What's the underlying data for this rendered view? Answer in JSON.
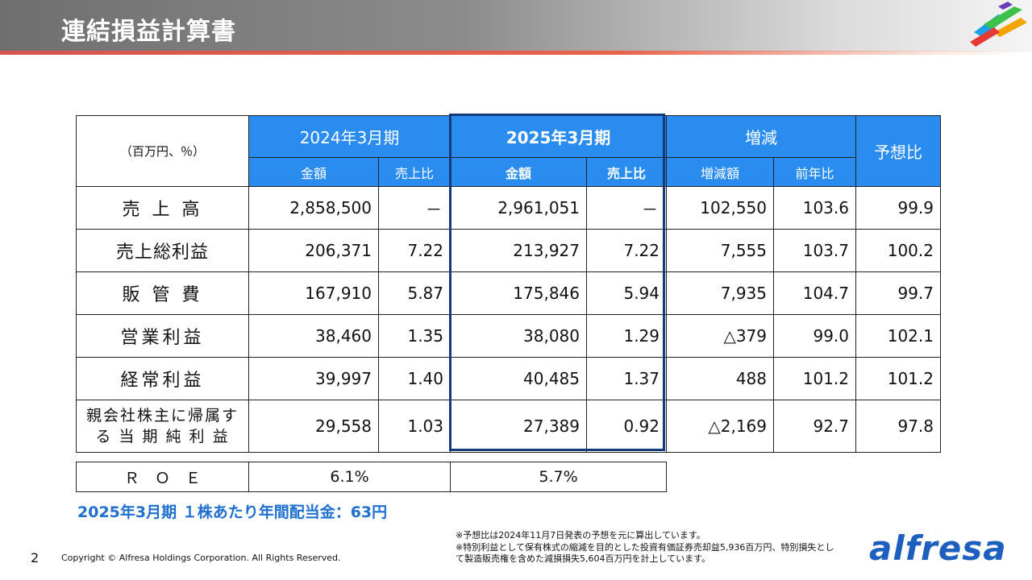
{
  "header": {
    "title": "連結損益計算書"
  },
  "colors": {
    "header_blue": "#2b8cf0",
    "highlight_border": "#143a7a",
    "dividend_text": "#1f6fd1",
    "brand": "#1c5fbf"
  },
  "table": {
    "unit_label": "（百万円、％）",
    "groups": {
      "fy2024": "2024年3月期",
      "fy2025": "2025年3月期",
      "change": "増減",
      "forecast_ratio": "予想比"
    },
    "subheaders": {
      "amount_2024": "金額",
      "ratio_2024": "売上比",
      "amount_2025": "金額",
      "ratio_2025": "売上比",
      "change_amount": "増減額",
      "yoy": "前年比"
    },
    "rows": [
      {
        "label": "売 上 高",
        "a2024": "2,858,500",
        "r2024": "－",
        "a2025": "2,961,051",
        "r2025": "－",
        "chg": "102,550",
        "yoy": "103.6",
        "fc": "99.9"
      },
      {
        "label": "売上総利益",
        "a2024": "206,371",
        "r2024": "7.22",
        "a2025": "213,927",
        "r2025": "7.22",
        "chg": "7,555",
        "yoy": "103.7",
        "fc": "100.2"
      },
      {
        "label": "販 管 費",
        "a2024": "167,910",
        "r2024": "5.87",
        "a2025": "175,846",
        "r2025": "5.94",
        "chg": "7,935",
        "yoy": "104.7",
        "fc": "99.7"
      },
      {
        "label": "営業利益",
        "a2024": "38,460",
        "r2024": "1.35",
        "a2025": "38,080",
        "r2025": "1.29",
        "chg": "△379",
        "yoy": "99.0",
        "fc": "102.1"
      },
      {
        "label": "経常利益",
        "a2024": "39,997",
        "r2024": "1.40",
        "a2025": "40,485",
        "r2025": "1.37",
        "chg": "488",
        "yoy": "101.2",
        "fc": "101.2"
      },
      {
        "label_line1": "親会社株主に帰属す",
        "label_line2": "る 当 期 純 利 益",
        "a2024": "29,558",
        "r2024": "1.03",
        "a2025": "27,389",
        "r2025": "0.92",
        "chg": "△2,169",
        "yoy": "92.7",
        "fc": "97.8"
      }
    ]
  },
  "roe": {
    "label": "Ｒ　Ｏ　Ｅ",
    "fy2024": "6.1%",
    "fy2025": "5.7%"
  },
  "dividend": "2025年3月期 １株あたり年間配当金：63円",
  "notes": {
    "line1": "※予想比は2024年11月7日発表の予想を元に算出しています。",
    "line2": "※特別利益として保有株式の縮減を目的とした投資有価証券売却益5,936百万円、特別損失とし",
    "line3": "て製造販売権を含めた減損損失5,604百万円を計上しています。"
  },
  "footer": {
    "page_number": "2",
    "copyright": "Copyright © Alfresa Holdings Corporation. All Rights Reserved.",
    "brand": "alfresa"
  }
}
